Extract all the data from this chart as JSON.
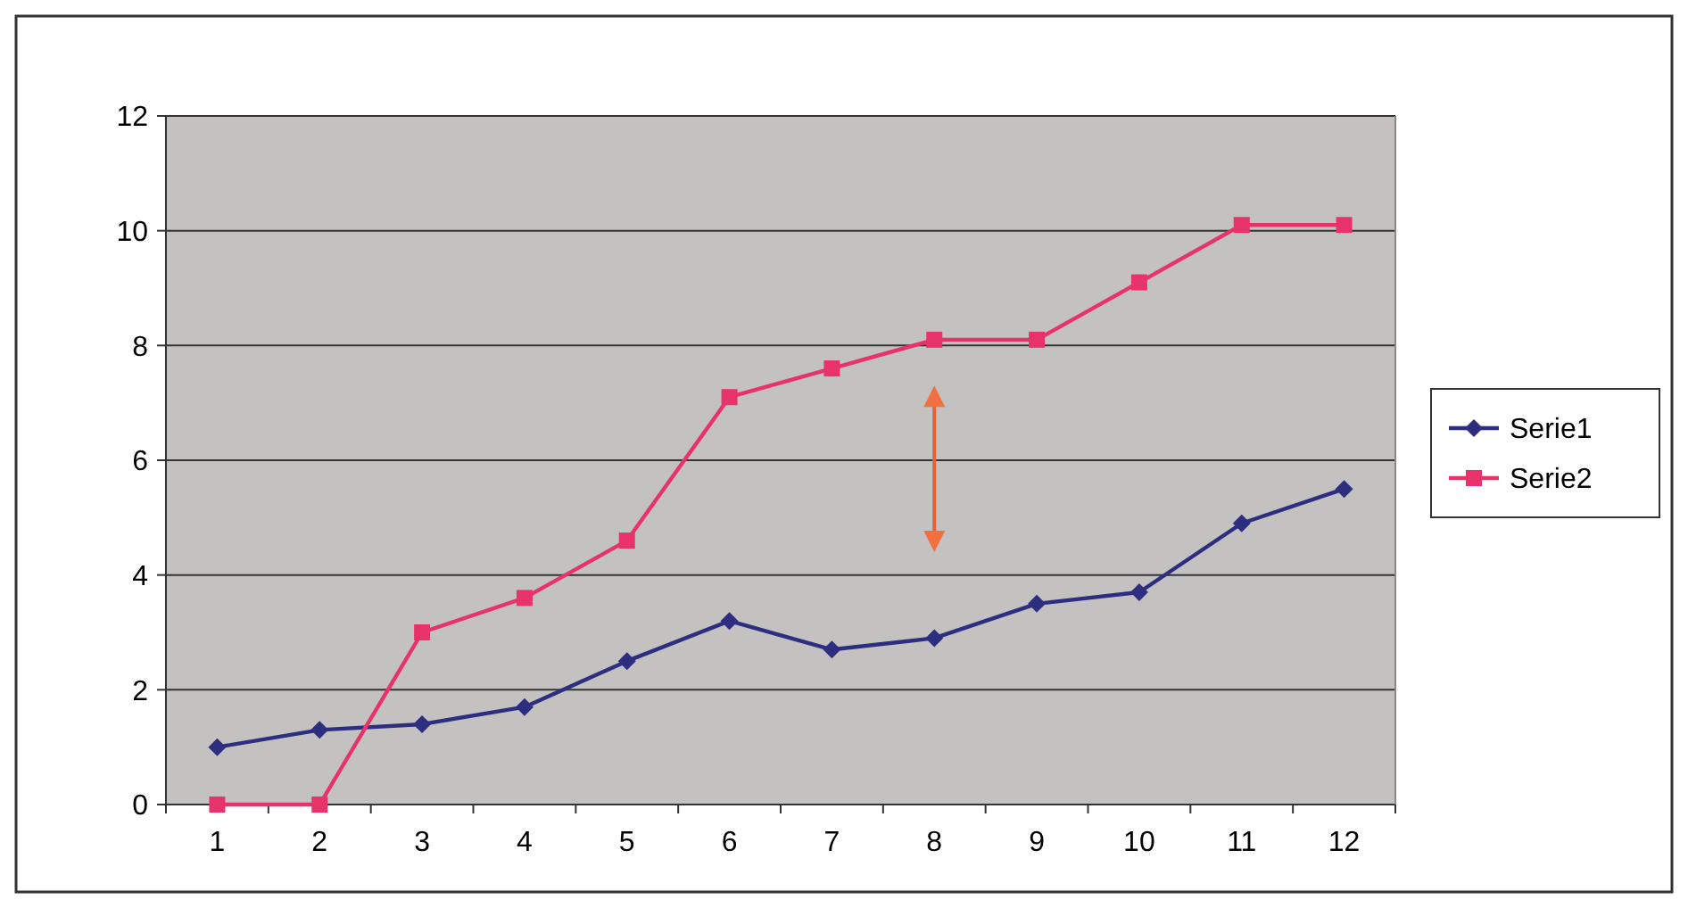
{
  "chart_data": {
    "type": "line",
    "categories": [
      "1",
      "2",
      "3",
      "4",
      "5",
      "6",
      "7",
      "8",
      "9",
      "10",
      "11",
      "12"
    ],
    "series": [
      {
        "name": "Serie1",
        "color": "#2e2e80",
        "marker": "diamond",
        "values": [
          1.0,
          1.3,
          1.4,
          1.7,
          2.5,
          3.2,
          2.7,
          2.9,
          3.5,
          3.7,
          4.9,
          5.5
        ]
      },
      {
        "name": "Serie2",
        "color": "#e8336a",
        "marker": "square",
        "values": [
          0,
          0,
          3.0,
          3.6,
          4.6,
          7.1,
          7.6,
          8.1,
          8.1,
          9.1,
          10.1,
          10.1
        ]
      }
    ],
    "ylim": [
      0,
      12
    ],
    "yticks": [
      0,
      2,
      4,
      6,
      8,
      10,
      12
    ],
    "grid": "y",
    "legend": "right"
  }
}
